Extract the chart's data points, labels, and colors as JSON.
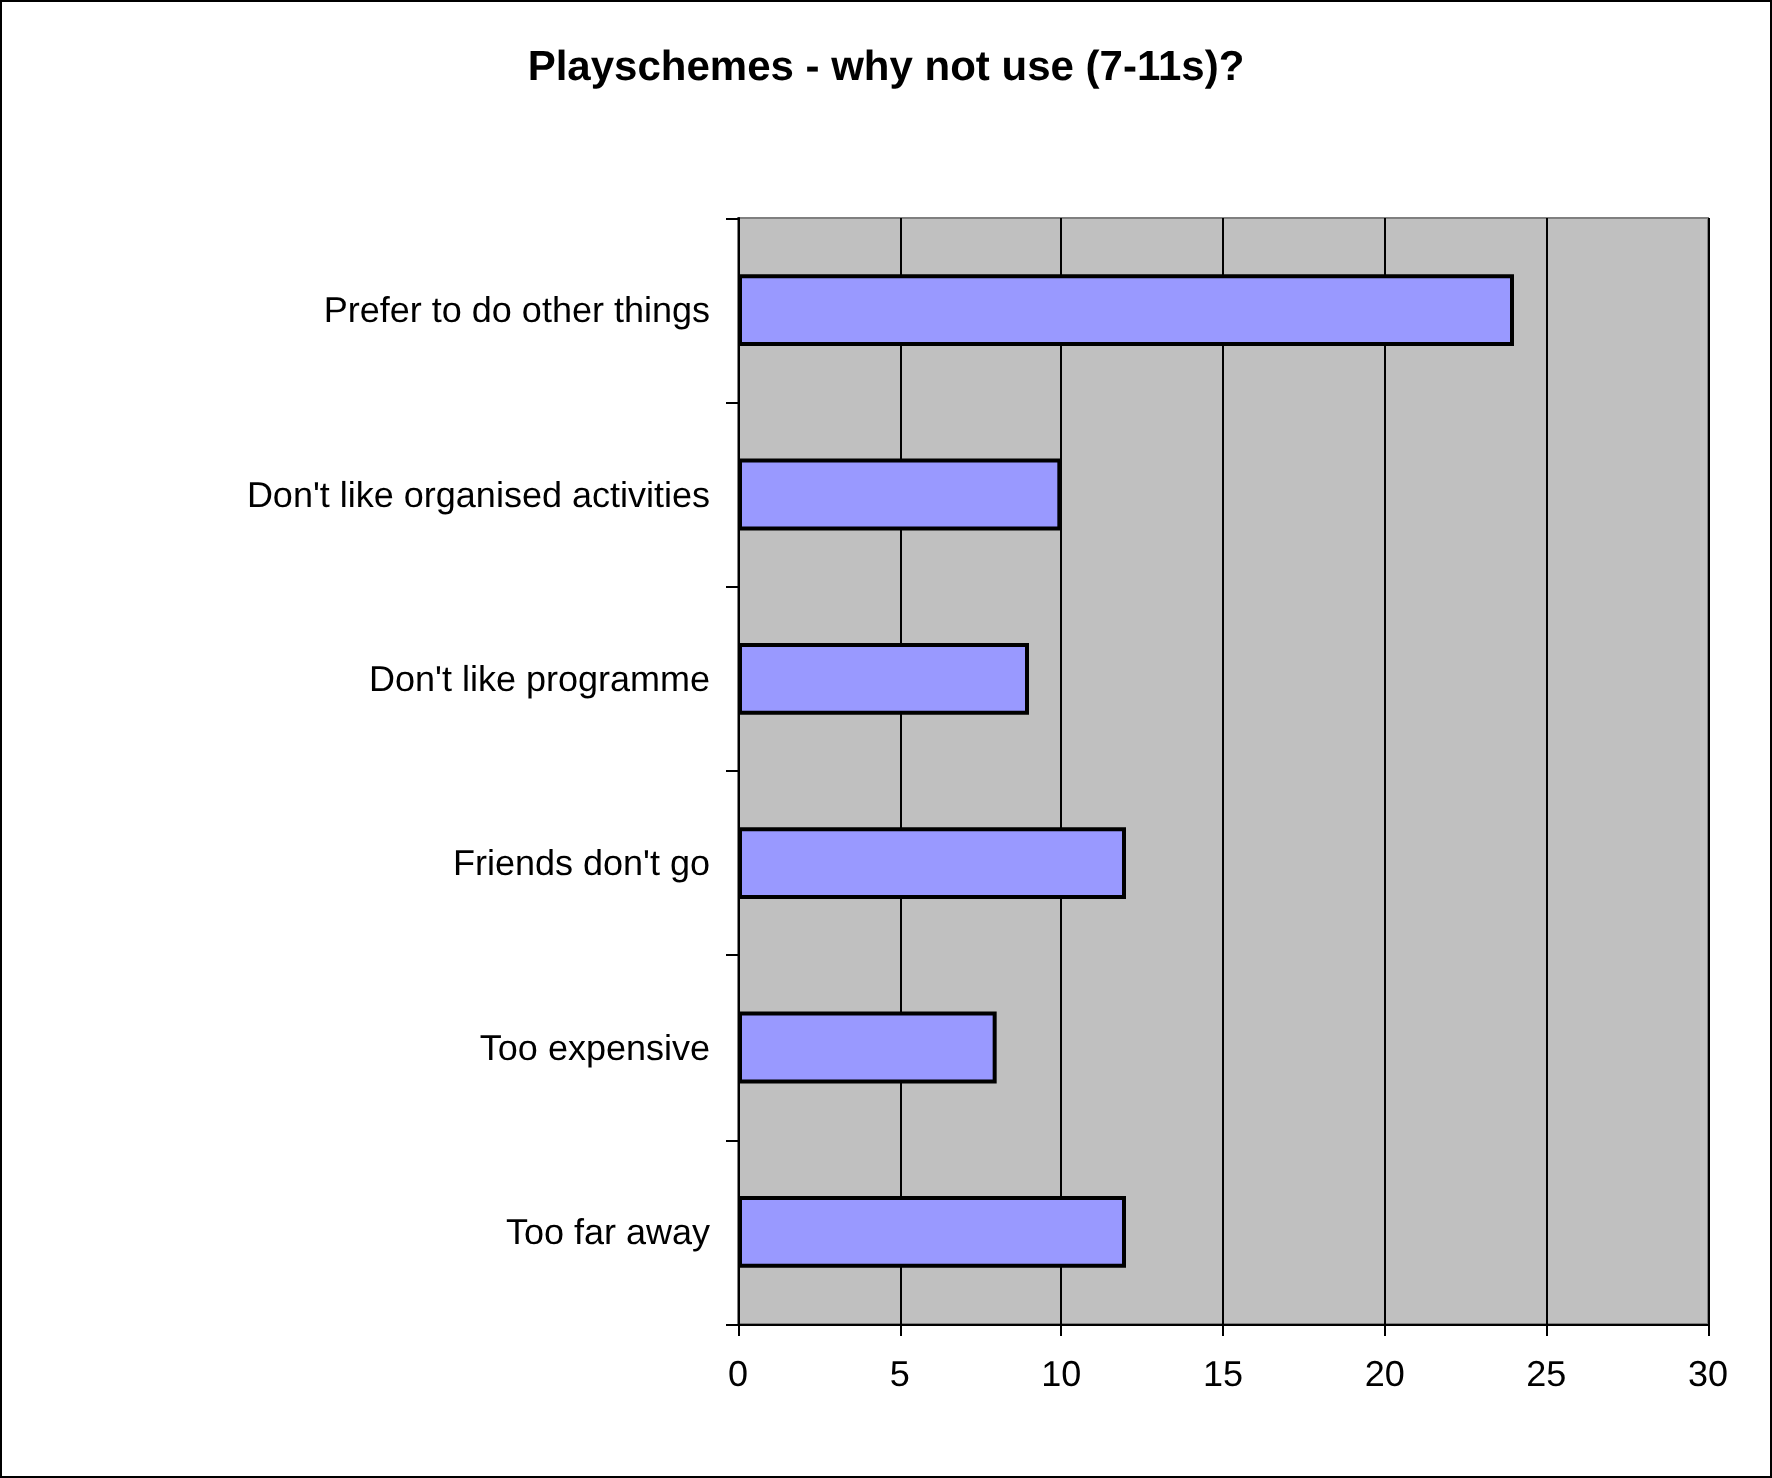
{
  "chart_data": {
    "type": "bar",
    "orientation": "horizontal",
    "title": "Playschemes - why not use (7-11s)?",
    "categories": [
      "Prefer to do other things",
      "Don't like organised activities",
      "Don't like programme",
      "Friends don't go",
      "Too expensive",
      "Too far away"
    ],
    "values": [
      24,
      10,
      9,
      12,
      8,
      12
    ],
    "color": "#9999ff",
    "xlim": [
      0,
      30
    ],
    "xticks": [
      0,
      5,
      10,
      15,
      20,
      25,
      30
    ],
    "grid": "x"
  }
}
